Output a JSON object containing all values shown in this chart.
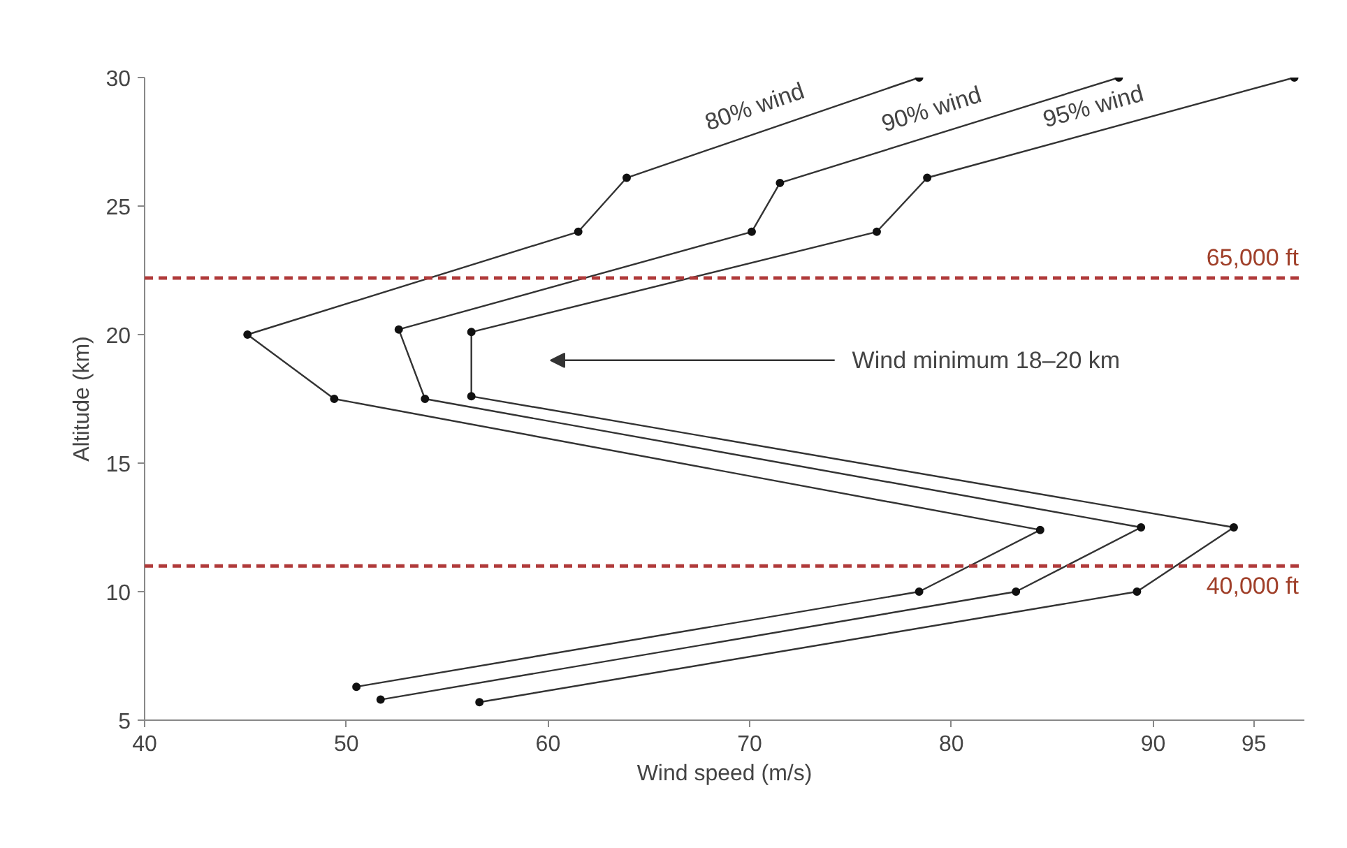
{
  "chart_data": {
    "type": "line",
    "xlabel": "Wind speed (m/s)",
    "ylabel": "Altitude (km)",
    "xlim": [
      40,
      97.5
    ],
    "xticks": [
      40,
      50,
      60,
      70,
      80,
      90,
      95
    ],
    "ylim": [
      5,
      30
    ],
    "yticks": [
      5,
      10,
      15,
      20,
      25,
      30
    ],
    "grid": false,
    "marker": "circle",
    "line_style": "solid",
    "series": [
      {
        "name": "80% wind",
        "color": "#333333",
        "x": [
          50.5,
          78.4,
          84.4,
          49.4,
          45.1,
          61.5,
          63.9,
          78.4
        ],
        "values": [
          6.3,
          10.0,
          12.4,
          17.5,
          20.0,
          24.0,
          26.1,
          30.0
        ]
      },
      {
        "name": "90% wind",
        "color": "#333333",
        "x": [
          51.7,
          83.2,
          89.4,
          53.9,
          52.6,
          70.1,
          71.5,
          88.3
        ],
        "values": [
          5.8,
          10.0,
          12.5,
          17.5,
          20.2,
          24.0,
          25.9,
          30.0
        ]
      },
      {
        "name": "95% wind",
        "color": "#333333",
        "x": [
          56.6,
          89.2,
          94.0,
          56.2,
          56.2,
          76.3,
          78.8,
          97.0
        ],
        "values": [
          5.7,
          10.0,
          12.5,
          17.6,
          20.1,
          24.0,
          26.1,
          30.0
        ]
      }
    ],
    "ref_lines": [
      {
        "axis": "y",
        "value": 22.2,
        "label": "65,000 ft",
        "color": "#b03a3a",
        "line_style": "dashed"
      },
      {
        "axis": "y",
        "value": 11.0,
        "label": "40,000 ft",
        "color": "#b03a3a",
        "line_style": "dashed"
      }
    ],
    "annotations": [
      "Wind minimum 18–20 km"
    ]
  }
}
